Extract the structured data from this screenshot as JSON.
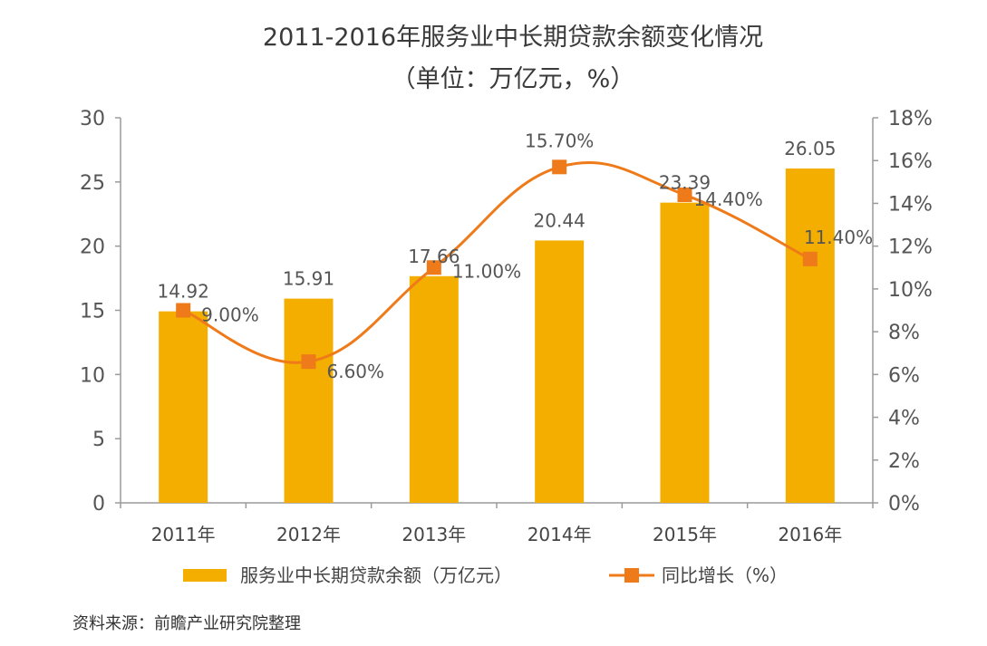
{
  "chart_data": {
    "type": "bar+line",
    "title": "2011-2016年服务业中长期贷款余额变化情况",
    "subtitle": "（单位：万亿元，%）",
    "categories": [
      "2011年",
      "2012年",
      "2013年",
      "2014年",
      "2015年",
      "2016年"
    ],
    "series": [
      {
        "name": "服务业中长期贷款余额（万亿元）",
        "type": "bar",
        "axis": "left",
        "values": [
          14.92,
          15.91,
          17.66,
          20.44,
          23.39,
          26.05
        ],
        "labels": [
          "14.92",
          "15.91",
          "17.66",
          "20.44",
          "23.39",
          "26.05"
        ],
        "color": "#F4AE00"
      },
      {
        "name": "同比增长（%）",
        "type": "line",
        "axis": "right",
        "values": [
          9.0,
          6.6,
          11.0,
          15.7,
          14.4,
          11.4
        ],
        "labels": [
          "9.00%",
          "6.60%",
          "11.00%",
          "15.70%",
          "14.40%",
          "11.40%"
        ],
        "color": "#EE7A1A"
      }
    ],
    "y_left": {
      "ylim": [
        0,
        30
      ],
      "ticks": [
        0,
        5,
        10,
        15,
        20,
        25,
        30
      ],
      "tick_labels": [
        "0",
        "5",
        "10",
        "15",
        "20",
        "25",
        "30"
      ]
    },
    "y_right": {
      "ylim": [
        0,
        18
      ],
      "ticks": [
        0,
        2,
        4,
        6,
        8,
        10,
        12,
        14,
        16,
        18
      ],
      "tick_labels": [
        "0%",
        "2%",
        "4%",
        "6%",
        "8%",
        "10%",
        "12%",
        "14%",
        "16%",
        "18%"
      ]
    },
    "grid": false,
    "legend_position": "bottom"
  },
  "source": "资料来源：前瞻产业研究院整理"
}
